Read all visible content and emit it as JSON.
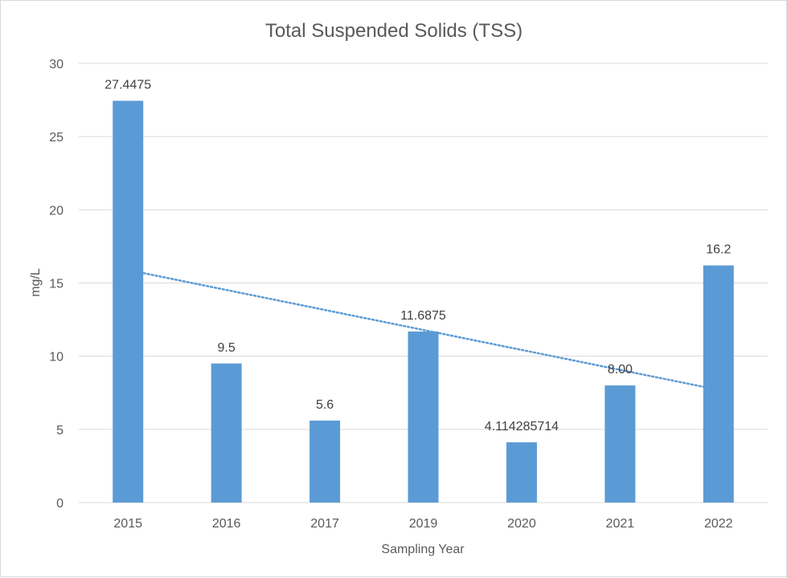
{
  "chart_data": {
    "type": "bar",
    "title": "Total Suspended Solids (TSS)",
    "xlabel": "Sampling Year",
    "ylabel": "mg/L",
    "categories": [
      "2015",
      "2016",
      "2017",
      "2019",
      "2020",
      "2021",
      "2022"
    ],
    "values": [
      27.4475,
      9.5,
      5.6,
      11.6875,
      4.114285714,
      8.0,
      16.2
    ],
    "data_labels": [
      "27.4475",
      "9.5",
      "5.6",
      "11.6875",
      "4.114285714",
      "8.00",
      "16.2"
    ],
    "ylim": [
      0,
      30
    ],
    "yticks": [
      "0",
      "5",
      "10",
      "15",
      "20",
      "25",
      "30"
    ],
    "grid": true,
    "legend": "none",
    "trendline": {
      "type": "linear",
      "style": "dotted"
    },
    "colors": {
      "bar": "#5b9bd5",
      "trendline": "#5b9bd5",
      "grid": "#d9d9d9",
      "text": "#595959"
    }
  }
}
